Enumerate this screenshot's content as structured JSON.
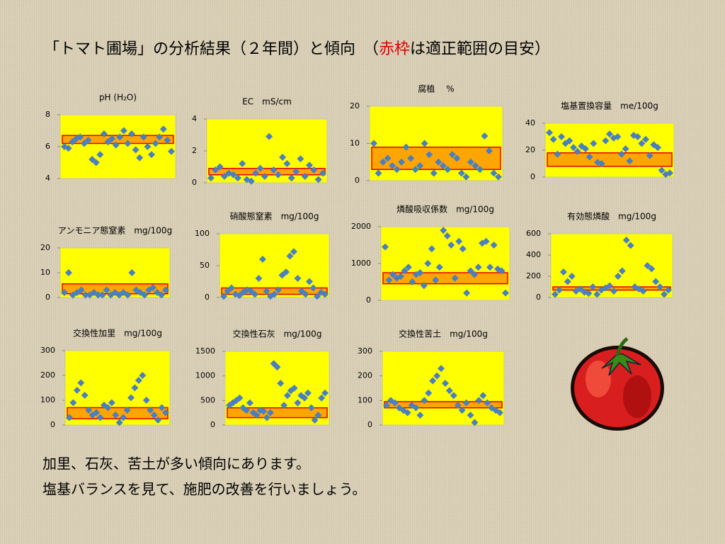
{
  "title": [
    "「トマト圃場」の分析結果（２年間）と傾向　（",
    "赤枠",
    "は適正範囲の目安）"
  ],
  "notes": [
    "加里、石灰、苦土が多い傾向にあります。",
    "塩基バランスを見て、施肥の改善を行いましょう。"
  ],
  "chart_data": [
    {
      "type": "scatter",
      "title": "pH (H₂O)",
      "ylim": [
        4,
        8
      ],
      "yticks": [
        4,
        6,
        8
      ],
      "range": [
        6.2,
        6.7
      ],
      "color": "#4a7fc1",
      "range_color": "#ffa500",
      "values": [
        6,
        5.9,
        6.3,
        6.5,
        6.6,
        6.2,
        6.4,
        5.2,
        5.0,
        5.5,
        6.8,
        6.3,
        6.5,
        6.1,
        6.6,
        7,
        6.2,
        6.8,
        5.8,
        5.3,
        6.6,
        6.0,
        5.5,
        6.2,
        6.6,
        7.1,
        6.4,
        5.7
      ]
    },
    {
      "type": "scatter",
      "title": "EC　mS/cm",
      "ylim": [
        0,
        4
      ],
      "yticks": [
        0,
        2,
        4
      ],
      "range": [
        0.5,
        0.9
      ],
      "color": "#4a7fc1",
      "range_color": "#ffa500",
      "values": [
        0.3,
        0.8,
        1.0,
        0.4,
        0.6,
        0.5,
        0.3,
        1.2,
        0.2,
        0.1,
        0.6,
        0.9,
        0.4,
        2.9,
        0.8,
        0.5,
        1.6,
        1.2,
        0.3,
        0.7,
        1.5,
        0.4,
        1.1,
        0.8,
        0.2,
        0.6
      ]
    },
    {
      "type": "scatter",
      "title": "腐植　 %",
      "ylim": [
        0,
        20
      ],
      "yticks": [
        0,
        10,
        20
      ],
      "range": [
        3,
        9
      ],
      "color": "#4a7fc1",
      "range_color": "#ffa500",
      "values": [
        10,
        2,
        5,
        6,
        4,
        3,
        5,
        9,
        6,
        3,
        4,
        10,
        7,
        2,
        5,
        4,
        3,
        7,
        6,
        2,
        1,
        5,
        4,
        3,
        12,
        8,
        2,
        1
      ]
    },
    {
      "type": "scatter",
      "title": "塩基置換容量　me/100g",
      "ylim": [
        0,
        40
      ],
      "yticks": [
        0,
        20,
        40
      ],
      "range": [
        8,
        18
      ],
      "color": "#4a7fc1",
      "range_color": "#ffa500",
      "values": [
        33,
        28,
        17,
        30,
        25,
        27,
        22,
        19,
        23,
        21,
        15,
        25,
        11,
        10,
        27,
        32,
        29,
        30,
        17,
        21,
        12,
        31,
        30,
        25,
        28,
        16,
        24,
        22,
        5,
        2,
        3
      ]
    },
    {
      "type": "scatter",
      "title": "アンモニア態窒素　mg/100g",
      "ylim": [
        0,
        20
      ],
      "yticks": [
        0,
        10,
        20
      ],
      "range": [
        1.5,
        5.5
      ],
      "color": "#4a7fc1",
      "range_color": "#ffa500",
      "values": [
        2,
        10,
        1,
        2,
        3,
        1,
        1,
        2,
        1,
        1,
        3,
        1,
        2,
        1,
        2,
        1,
        10,
        3,
        2,
        1,
        3,
        4,
        2,
        1,
        3
      ]
    },
    {
      "type": "scatter",
      "title": "硝酸態窒素　mg/100g",
      "ylim": [
        0,
        100
      ],
      "yticks": [
        0,
        50,
        100
      ],
      "range": [
        5,
        15
      ],
      "color": "#4a7fc1",
      "range_color": "#ffa500",
      "values": [
        2,
        10,
        15,
        5,
        3,
        8,
        12,
        10,
        5,
        30,
        60,
        10,
        2,
        5,
        12,
        35,
        40,
        65,
        72,
        30,
        10,
        5,
        25,
        15,
        2,
        8,
        5
      ]
    },
    {
      "type": "scatter",
      "title": "燐酸吸収係数　mg/100g",
      "ylim": [
        0,
        2000
      ],
      "yticks": [
        0,
        1000,
        2000
      ],
      "range": [
        450,
        750
      ],
      "color": "#4a7fc1",
      "range_color": "#ffa500",
      "values": [
        1450,
        550,
        700,
        600,
        650,
        800,
        900,
        500,
        700,
        750,
        400,
        1000,
        1400,
        550,
        900,
        1900,
        1750,
        1500,
        600,
        1600,
        1400,
        200,
        800,
        700,
        900,
        1550,
        1600,
        900,
        1500,
        850,
        800,
        200
      ]
    },
    {
      "type": "scatter",
      "title": "有効態燐酸　mg/100g",
      "ylim": [
        0,
        600
      ],
      "yticks": [
        0,
        200,
        400,
        600
      ],
      "range": [
        70,
        100
      ],
      "color": "#4a7fc1",
      "range_color": "#ffa500",
      "values": [
        30,
        70,
        240,
        150,
        200,
        60,
        80,
        50,
        40,
        100,
        30,
        70,
        90,
        110,
        60,
        200,
        250,
        540,
        490,
        100,
        80,
        60,
        300,
        270,
        150,
        100,
        30,
        70
      ]
    },
    {
      "type": "scatter",
      "title": "交換性加里　mg/100g",
      "ylim": [
        0,
        300
      ],
      "yticks": [
        0,
        100,
        200,
        300
      ],
      "range": [
        25,
        70
      ],
      "color": "#4a7fc1",
      "range_color": "#ffa500",
      "values": [
        30,
        90,
        140,
        170,
        120,
        60,
        40,
        50,
        30,
        80,
        70,
        90,
        40,
        10,
        30,
        60,
        110,
        150,
        180,
        200,
        100,
        60,
        40,
        20,
        70,
        50
      ]
    },
    {
      "type": "scatter",
      "title": "交換性石灰　mg/100g",
      "ylim": [
        0,
        1500
      ],
      "yticks": [
        0,
        500,
        1000,
        1500
      ],
      "range": [
        150,
        350
      ],
      "color": "#4a7fc1",
      "range_color": "#ffa500",
      "values": [
        400,
        450,
        500,
        550,
        350,
        300,
        450,
        250,
        200,
        300,
        280,
        150,
        250,
        1250,
        1180,
        850,
        400,
        600,
        700,
        750,
        450,
        600,
        550,
        650,
        350,
        100,
        200,
        550,
        650
      ]
    },
    {
      "type": "scatter",
      "title": "交換性苦土　mg/100g",
      "ylim": [
        0,
        300
      ],
      "yticks": [
        0,
        100,
        200,
        300
      ],
      "range": [
        70,
        95
      ],
      "color": "#4a7fc1",
      "range_color": "#ffa500",
      "values": [
        80,
        100,
        90,
        70,
        60,
        50,
        80,
        70,
        40,
        100,
        130,
        180,
        200,
        230,
        170,
        140,
        120,
        80,
        60,
        90,
        40,
        10,
        100,
        120,
        90,
        70,
        60,
        50
      ]
    }
  ]
}
